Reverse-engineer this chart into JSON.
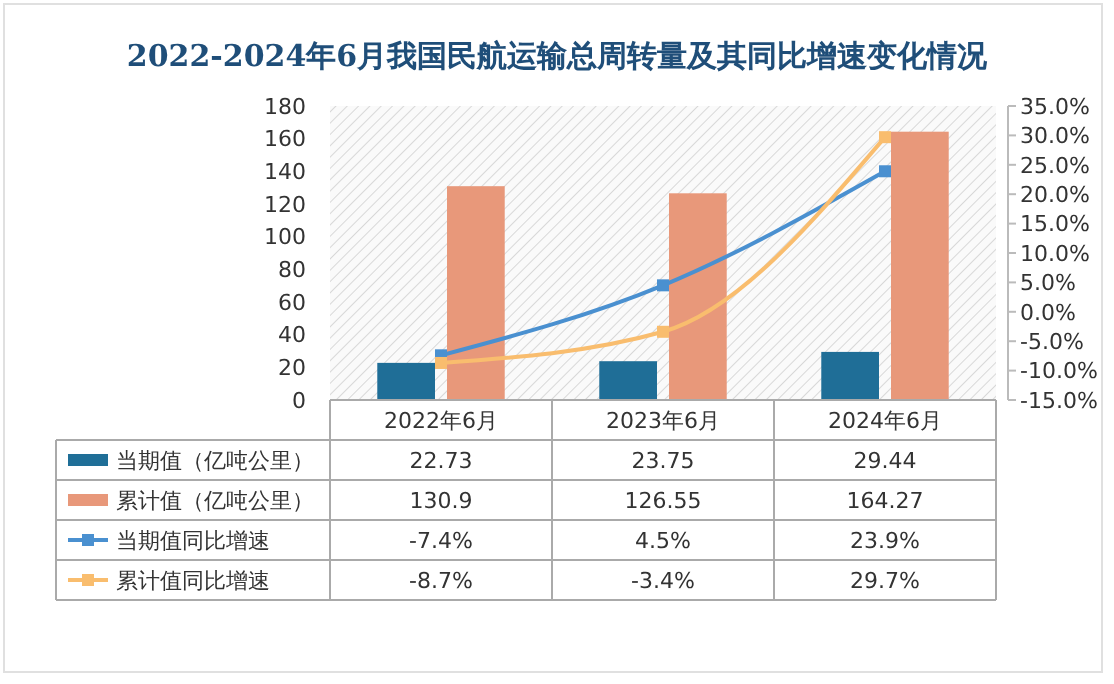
{
  "chart_data": {
    "type": "bar",
    "title": "2022-2024年6月我国民航运输总周转量及其同比增速变化情况",
    "categories": [
      "2022年6月",
      "2023年6月",
      "2024年6月"
    ],
    "series": [
      {
        "name": "当期值（亿吨公里）",
        "color": "#1f6e97",
        "values": [
          22.73,
          23.75,
          29.44
        ],
        "value_labels": [
          "22.73",
          "23.75",
          "29.44"
        ]
      },
      {
        "name": "累计值（亿吨公里）",
        "color": "#e8987a",
        "values": [
          130.9,
          126.55,
          164.27
        ],
        "value_labels": [
          "130.9",
          "126.55",
          "164.27"
        ]
      },
      {
        "name": "当期值同比增速",
        "type": "line",
        "axis": "y2",
        "color": "#4a90d0",
        "marker": "square",
        "values": [
          -7.4,
          4.5,
          23.9
        ],
        "value_labels": [
          "-7.4%",
          "4.5%",
          "23.9%"
        ]
      },
      {
        "name": "累计值同比增速",
        "type": "line",
        "axis": "y2",
        "color": "#f9bd6e",
        "marker": "square",
        "values": [
          -8.7,
          -3.4,
          29.7
        ],
        "value_labels": [
          "-8.7%",
          "-3.4%",
          "29.7%"
        ]
      }
    ],
    "ylim": [
      0,
      180
    ],
    "yticks": [
      0,
      20,
      40,
      60,
      80,
      100,
      120,
      140,
      160,
      180
    ],
    "y2lim": [
      -15,
      35
    ],
    "y2ticks": [
      {
        "value": -15,
        "label": "-15.0%"
      },
      {
        "value": -10,
        "label": "-10.0%"
      },
      {
        "value": -5,
        "label": "-5.0%"
      },
      {
        "value": 0,
        "label": "0.0%"
      },
      {
        "value": 5,
        "label": "5.0%"
      },
      {
        "value": 10,
        "label": "10.0%"
      },
      {
        "value": 15,
        "label": "15.0%"
      },
      {
        "value": 20,
        "label": "20.0%"
      },
      {
        "value": 25,
        "label": "25.0%"
      },
      {
        "value": 30,
        "label": "30.0%"
      },
      {
        "value": 35,
        "label": "35.0%"
      }
    ],
    "legend": "bottom"
  }
}
